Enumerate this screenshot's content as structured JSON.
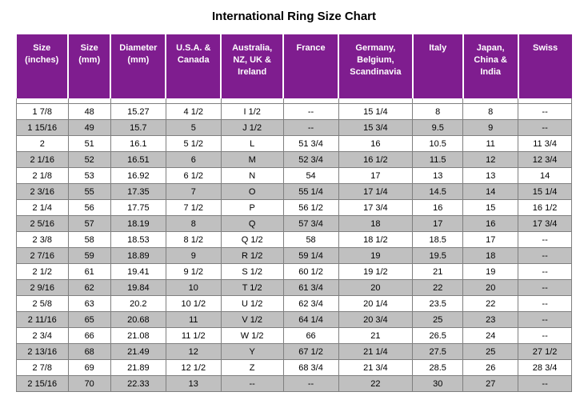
{
  "title": "International Ring Size Chart",
  "header_bg": "#7f1d8f",
  "header_fg": "#ffffff",
  "row_odd_bg": "#ffffff",
  "row_even_bg": "#c0c0c0",
  "border_color": "#7f7f7f",
  "columns": [
    "Size (inches)",
    "Size (mm)",
    "Diameter (mm)",
    "U.S.A. & Canada",
    "Australia, NZ, UK & Ireland",
    "France",
    "Germany, Belgium, Scandinavia",
    "Italy",
    "Japan, China & India",
    "Swiss"
  ],
  "rows": [
    [
      "1  7/8",
      "48",
      "15.27",
      "4 1/2",
      "I 1/2",
      "--",
      "15 1/4",
      "8",
      "8",
      "--"
    ],
    [
      "1 15/16",
      "49",
      "15.7",
      "5",
      "J 1/2",
      "--",
      "15 3/4",
      "9.5",
      "9",
      "--"
    ],
    [
      "2",
      "51",
      "16.1",
      "5 1/2",
      "L",
      "51 3/4",
      "16",
      "10.5",
      "11",
      "11 3/4"
    ],
    [
      "2  1/16",
      "52",
      "16.51",
      "6",
      "M",
      "52 3/4",
      "16 1/2",
      "11.5",
      "12",
      "12 3/4"
    ],
    [
      "2  1/8",
      "53",
      "16.92",
      "6 1/2",
      "N",
      "54",
      "17",
      "13",
      "13",
      "14"
    ],
    [
      "2  3/16",
      "55",
      "17.35",
      "7",
      "O",
      "55 1/4",
      "17 1/4",
      "14.5",
      "14",
      "15 1/4"
    ],
    [
      "2  1/4",
      "56",
      "17.75",
      "7 1/2",
      "P",
      "56 1/2",
      "17 3/4",
      "16",
      "15",
      "16 1/2"
    ],
    [
      "2  5/16",
      "57",
      "18.19",
      "8",
      "Q",
      "57 3/4",
      "18",
      "17",
      "16",
      "17 3/4"
    ],
    [
      "2  3/8",
      "58",
      "18.53",
      "8 1/2",
      "Q 1/2",
      "58",
      "18 1/2",
      "18.5",
      "17",
      "--"
    ],
    [
      "2  7/16",
      "59",
      "18.89",
      "9",
      "R 1/2",
      "59 1/4",
      "19",
      "19.5",
      "18",
      "--"
    ],
    [
      "2  1/2",
      "61",
      "19.41",
      "9 1/2",
      "S 1/2",
      "60 1/2",
      "19 1/2",
      "21",
      "19",
      "--"
    ],
    [
      "2  9/16",
      "62",
      "19.84",
      "10",
      "T 1/2",
      "61 3/4",
      "20",
      "22",
      "20",
      "--"
    ],
    [
      "2  5/8",
      "63",
      "20.2",
      "10 1/2",
      "U 1/2",
      "62 3/4",
      "20 1/4",
      "23.5",
      "22",
      "--"
    ],
    [
      "2 11/16",
      "65",
      "20.68",
      "11",
      "V 1/2",
      "64 1/4",
      "20 3/4",
      "25",
      "23",
      "--"
    ],
    [
      "2  3/4",
      "66",
      "21.08",
      "11 1/2",
      "W 1/2",
      "66",
      "21",
      "26.5",
      "24",
      "--"
    ],
    [
      "2 13/16",
      "68",
      "21.49",
      "12",
      "Y",
      "67 1/2",
      "21 1/4",
      "27.5",
      "25",
      "27 1/2"
    ],
    [
      "2  7/8",
      "69",
      "21.89",
      "12 1/2",
      "Z",
      "68 3/4",
      "21 3/4",
      "28.5",
      "26",
      "28 3/4"
    ],
    [
      "2 15/16",
      "70",
      "22.33",
      "13",
      "--",
      "--",
      "22",
      "30",
      "27",
      "--"
    ]
  ]
}
